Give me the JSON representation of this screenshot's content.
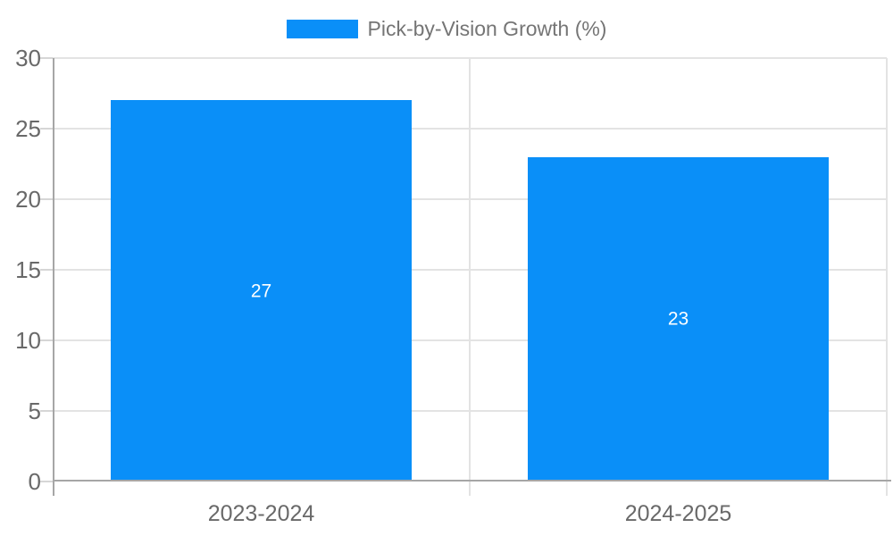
{
  "chart_data": {
    "type": "bar",
    "title": "",
    "legend": [
      {
        "label": "Pick-by-Vision Growth (%)",
        "color": "#0a8ff8"
      }
    ],
    "legend_position": "top",
    "categories": [
      "2023-2024",
      "2024-2025"
    ],
    "series": [
      {
        "name": "Pick-by-Vision Growth (%)",
        "values": [
          27,
          23
        ]
      }
    ],
    "bar_value_labels": [
      "27",
      "23"
    ],
    "xlabel": "",
    "ylabel": "",
    "ylim": [
      0,
      30
    ],
    "yticks": [
      0,
      5,
      10,
      15,
      20,
      25,
      30
    ],
    "grid": true
  },
  "colors": {
    "bar": "#0a8ff8",
    "legend_text": "#757575",
    "axis_label": "#696969",
    "gridline": "#e3e3e3",
    "tick": "#d6d6d6",
    "axis_line": "#a6a6a6",
    "data_label": "#ffffff",
    "background": "#ffffff"
  }
}
